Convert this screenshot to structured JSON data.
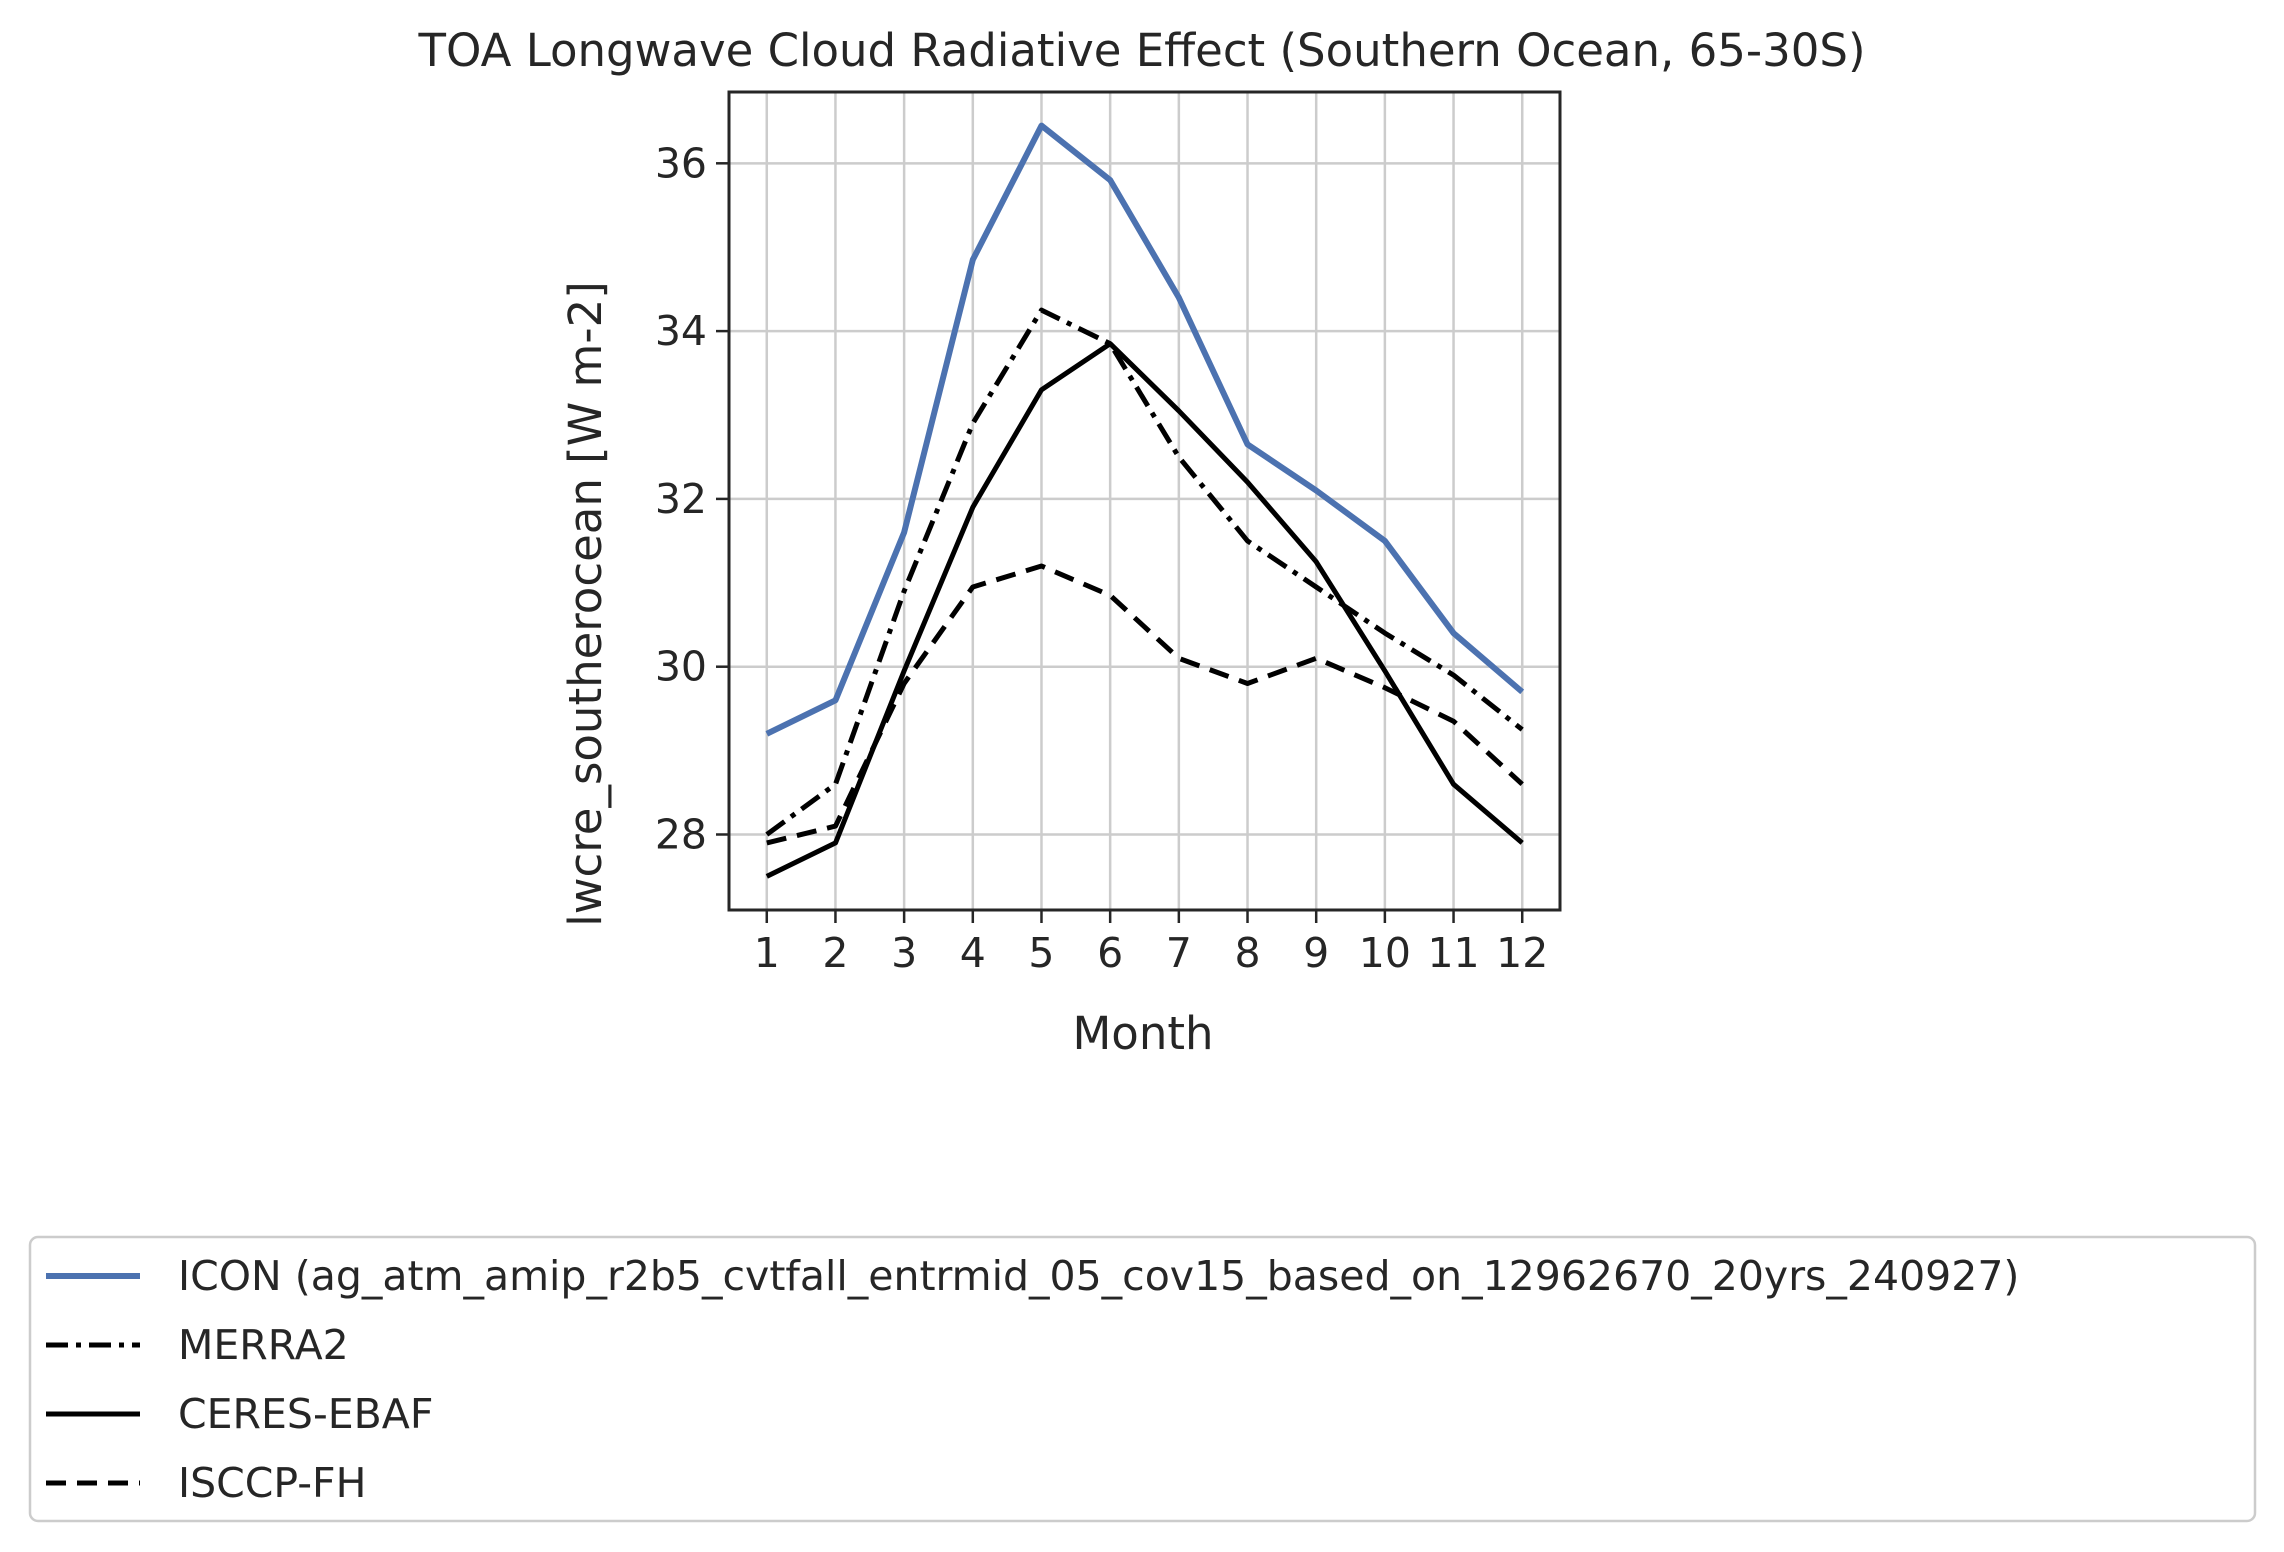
{
  "chart_data": {
    "type": "line",
    "title": "TOA Longwave Cloud Radiative Effect (Southern Ocean, 65-30S)",
    "xlabel": "Month",
    "ylabel": "lwcre_southerocean [W m-2]",
    "x": [
      1,
      2,
      3,
      4,
      5,
      6,
      7,
      8,
      9,
      10,
      11,
      12
    ],
    "x_ticks": [
      "1",
      "2",
      "3",
      "4",
      "5",
      "6",
      "7",
      "8",
      "9",
      "10",
      "11",
      "12"
    ],
    "y_ticks": [
      "28",
      "30",
      "32",
      "34",
      "36"
    ],
    "xlim": [
      0.45,
      12.55
    ],
    "ylim": [
      27.1,
      36.85
    ],
    "grid": true,
    "legend_position": "below",
    "series": [
      {
        "name": "ICON (ag_atm_amip_r2b5_cvtfall_entrmid_05_cov15_based_on_12962670_20yrs_240927)",
        "values": [
          29.2,
          29.6,
          31.6,
          34.85,
          36.45,
          35.8,
          34.4,
          32.65,
          32.1,
          31.5,
          30.4,
          29.7
        ],
        "color": "#4c72b0",
        "style": "solid"
      },
      {
        "name": "MERRA2",
        "values": [
          28.0,
          28.6,
          30.9,
          32.9,
          34.25,
          33.85,
          32.5,
          31.5,
          30.95,
          30.4,
          29.9,
          29.25
        ],
        "color": "#000000",
        "style": "dashdot"
      },
      {
        "name": "CERES-EBAF",
        "values": [
          27.5,
          27.9,
          29.95,
          31.9,
          33.3,
          33.85,
          33.05,
          32.2,
          31.25,
          29.95,
          28.6,
          27.9
        ],
        "color": "#000000",
        "style": "solid"
      },
      {
        "name": "ISCCP-FH",
        "values": [
          27.9,
          28.1,
          29.8,
          30.95,
          31.2,
          30.85,
          30.1,
          29.8,
          30.1,
          29.75,
          29.35,
          28.6
        ],
        "color": "#000000",
        "style": "dashed"
      }
    ]
  }
}
